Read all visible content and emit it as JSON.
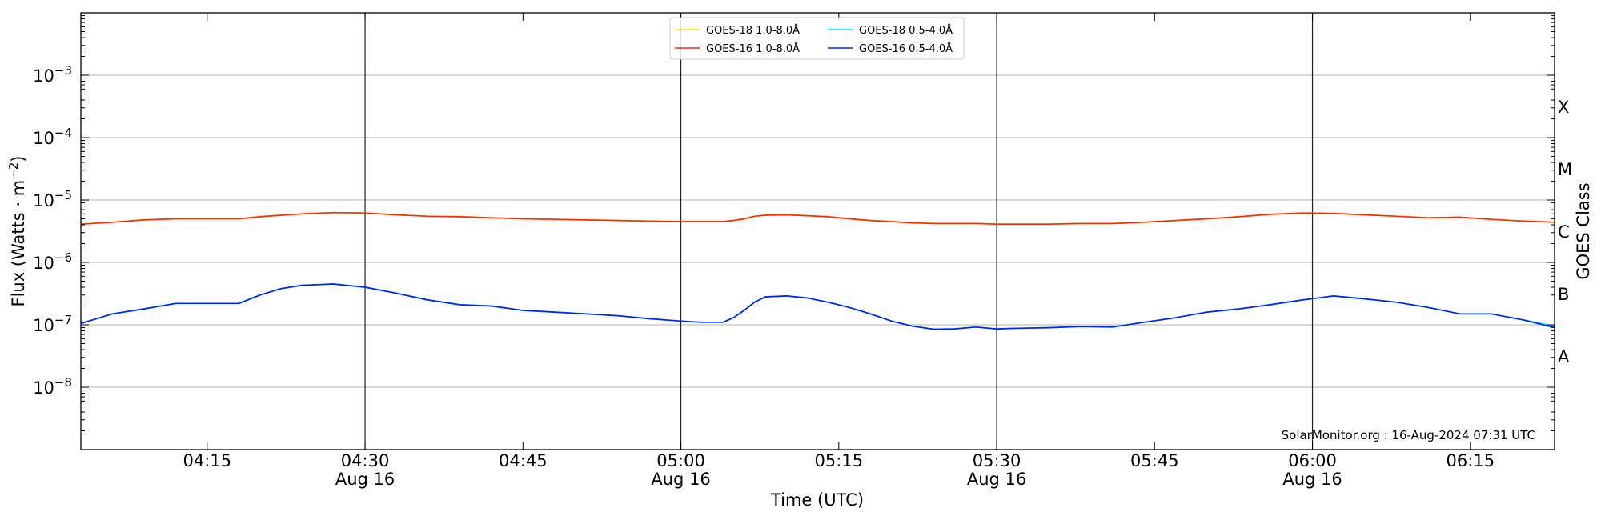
{
  "chart_data": {
    "type": "line",
    "xlabel": "Time (UTC)",
    "ylabel": "Flux (Watts · m⁻²)",
    "ylabel_right": "GOES Class",
    "credit": "SolarMonitor.org : 16-Aug-2024 07:31 UTC",
    "yscale": "log",
    "ylim": [
      1e-09,
      0.01
    ],
    "xlim": [
      "04:03",
      "06:23"
    ],
    "grid": true,
    "legend_position": "top-center",
    "y_ticks": [
      {
        "value": 1e-08,
        "base": "10",
        "exp": "−8"
      },
      {
        "value": 1e-07,
        "base": "10",
        "exp": "−7"
      },
      {
        "value": 1e-06,
        "base": "10",
        "exp": "−6"
      },
      {
        "value": 1e-05,
        "base": "10",
        "exp": "−5"
      },
      {
        "value": 0.0001,
        "base": "10",
        "exp": "−4"
      },
      {
        "value": 0.001,
        "base": "10",
        "exp": "−3"
      }
    ],
    "x_ticks": [
      {
        "time": "04:15",
        "label": "04:15",
        "sub": ""
      },
      {
        "time": "04:30",
        "label": "04:30",
        "sub": "Aug 16"
      },
      {
        "time": "04:45",
        "label": "04:45",
        "sub": ""
      },
      {
        "time": "05:00",
        "label": "05:00",
        "sub": "Aug 16"
      },
      {
        "time": "05:15",
        "label": "05:15",
        "sub": ""
      },
      {
        "time": "05:30",
        "label": "05:30",
        "sub": "Aug 16"
      },
      {
        "time": "05:45",
        "label": "05:45",
        "sub": ""
      },
      {
        "time": "06:00",
        "label": "06:00",
        "sub": "Aug 16"
      },
      {
        "time": "06:15",
        "label": "06:15",
        "sub": ""
      }
    ],
    "vertical_lines": [
      "04:30",
      "05:00",
      "05:30",
      "06:00"
    ],
    "goes_classes": [
      {
        "label": "X",
        "value": 0.000316
      },
      {
        "label": "M",
        "value": 3.16e-05
      },
      {
        "label": "C",
        "value": 3.16e-06
      },
      {
        "label": "B",
        "value": 3.16e-07
      },
      {
        "label": "A",
        "value": 3.16e-08
      }
    ],
    "x": [
      "04:03",
      "04:06",
      "04:09",
      "04:12",
      "04:15",
      "04:18",
      "04:20",
      "04:22",
      "04:24",
      "04:27",
      "04:30",
      "04:33",
      "04:36",
      "04:39",
      "04:42",
      "04:45",
      "04:48",
      "04:51",
      "04:54",
      "04:57",
      "05:00",
      "05:02",
      "05:04",
      "05:05",
      "05:06",
      "05:07",
      "05:08",
      "05:10",
      "05:12",
      "05:14",
      "05:16",
      "05:18",
      "05:20",
      "05:22",
      "05:24",
      "05:26",
      "05:28",
      "05:30",
      "05:32",
      "05:35",
      "05:38",
      "05:41",
      "05:44",
      "05:47",
      "05:50",
      "05:53",
      "05:56",
      "05:59",
      "06:02",
      "06:05",
      "06:08",
      "06:11",
      "06:14",
      "06:17",
      "06:20",
      "06:23"
    ],
    "series": [
      {
        "name": "GOES-18 1.0-8.0Å",
        "color": "#ffd700",
        "values": [
          4.1e-06,
          4.4e-06,
          4.8e-06,
          5e-06,
          5e-06,
          5e-06,
          5.4e-06,
          5.7e-06,
          6e-06,
          6.3e-06,
          6.2e-06,
          5.8e-06,
          5.5e-06,
          5.4e-06,
          5.2e-06,
          5e-06,
          4.9e-06,
          4.8e-06,
          4.7e-06,
          4.6e-06,
          4.5e-06,
          4.5e-06,
          4.5e-06,
          4.7e-06,
          5e-06,
          5.5e-06,
          5.7e-06,
          5.8e-06,
          5.6e-06,
          5.4e-06,
          5e-06,
          4.7e-06,
          4.5e-06,
          4.3e-06,
          4.2e-06,
          4.2e-06,
          4.2e-06,
          4.1e-06,
          4.1e-06,
          4.1e-06,
          4.2e-06,
          4.2e-06,
          4.4e-06,
          4.7e-06,
          5e-06,
          5.4e-06,
          5.9e-06,
          6.2e-06,
          6.1e-06,
          5.8e-06,
          5.5e-06,
          5.2e-06,
          5.3e-06,
          4.9e-06,
          4.6e-06,
          4.4e-06
        ]
      },
      {
        "name": "GOES-16 1.0-8.0Å",
        "color": "#ff2a00",
        "values": [
          4.1e-06,
          4.4e-06,
          4.8e-06,
          5e-06,
          5e-06,
          5e-06,
          5.4e-06,
          5.7e-06,
          6e-06,
          6.3e-06,
          6.2e-06,
          5.8e-06,
          5.5e-06,
          5.4e-06,
          5.2e-06,
          5e-06,
          4.9e-06,
          4.8e-06,
          4.7e-06,
          4.6e-06,
          4.5e-06,
          4.5e-06,
          4.5e-06,
          4.7e-06,
          5e-06,
          5.5e-06,
          5.7e-06,
          5.8e-06,
          5.6e-06,
          5.4e-06,
          5e-06,
          4.7e-06,
          4.5e-06,
          4.3e-06,
          4.2e-06,
          4.2e-06,
          4.2e-06,
          4.1e-06,
          4.1e-06,
          4.1e-06,
          4.2e-06,
          4.2e-06,
          4.4e-06,
          4.7e-06,
          5e-06,
          5.4e-06,
          5.9e-06,
          6.2e-06,
          6.1e-06,
          5.8e-06,
          5.5e-06,
          5.2e-06,
          5.3e-06,
          4.9e-06,
          4.6e-06,
          4.4e-06
        ]
      },
      {
        "name": "GOES-18 0.5-4.0Å",
        "color": "#00e5ff",
        "values": [
          1.05e-07,
          1.5e-07,
          1.8e-07,
          2.2e-07,
          2.2e-07,
          2.2e-07,
          3e-07,
          3.8e-07,
          4.3e-07,
          4.5e-07,
          4e-07,
          3.2e-07,
          2.5e-07,
          2.1e-07,
          2e-07,
          1.7e-07,
          1.6e-07,
          1.5e-07,
          1.4e-07,
          1.25e-07,
          1.15e-07,
          1.1e-07,
          1.1e-07,
          1.3e-07,
          1.7e-07,
          2.3e-07,
          2.8e-07,
          2.9e-07,
          2.7e-07,
          2.3e-07,
          1.9e-07,
          1.5e-07,
          1.15e-07,
          9.5e-08,
          8.5e-08,
          8.6e-08,
          9.2e-08,
          8.6e-08,
          8.8e-08,
          9e-08,
          9.4e-08,
          9.2e-08,
          1.1e-07,
          1.3e-07,
          1.6e-07,
          1.8e-07,
          2.1e-07,
          2.5e-07,
          2.9e-07,
          2.6e-07,
          2.3e-07,
          1.9e-07,
          1.5e-07,
          1.5e-07,
          1.2e-07,
          9.5e-08
        ]
      },
      {
        "name": "GOES-16 0.5-4.0Å",
        "color": "#0022ff",
        "values": [
          1.05e-07,
          1.5e-07,
          1.8e-07,
          2.2e-07,
          2.2e-07,
          2.2e-07,
          3e-07,
          3.8e-07,
          4.3e-07,
          4.5e-07,
          4e-07,
          3.2e-07,
          2.5e-07,
          2.1e-07,
          2e-07,
          1.7e-07,
          1.6e-07,
          1.5e-07,
          1.4e-07,
          1.25e-07,
          1.15e-07,
          1.1e-07,
          1.1e-07,
          1.3e-07,
          1.7e-07,
          2.3e-07,
          2.8e-07,
          2.9e-07,
          2.7e-07,
          2.3e-07,
          1.9e-07,
          1.5e-07,
          1.15e-07,
          9.5e-08,
          8.5e-08,
          8.6e-08,
          9.2e-08,
          8.6e-08,
          8.8e-08,
          9e-08,
          9.4e-08,
          9.2e-08,
          1.1e-07,
          1.3e-07,
          1.6e-07,
          1.8e-07,
          2.1e-07,
          2.5e-07,
          2.9e-07,
          2.6e-07,
          2.3e-07,
          1.9e-07,
          1.5e-07,
          1.5e-07,
          1.2e-07,
          9e-08
        ]
      }
    ]
  }
}
